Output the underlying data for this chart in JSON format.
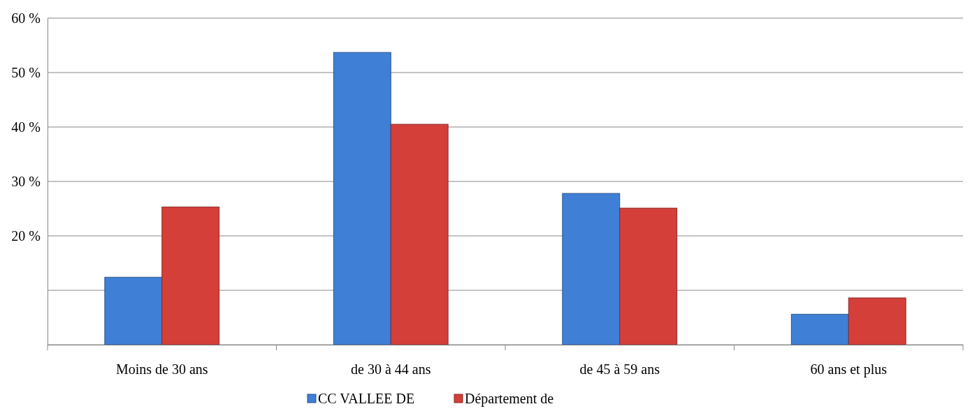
{
  "chart_data": {
    "type": "bar",
    "categories": [
      "Moins de 30 ans",
      "de 30 à 44 ans",
      "de 45 à 59 ans",
      "60 ans et plus"
    ],
    "series": [
      {
        "name": "CC VALLEE DE",
        "color": "#3f7fd6",
        "values": [
          12.4,
          53.7,
          27.8,
          5.6
        ]
      },
      {
        "name": "Département de",
        "color": "#d43f3a",
        "values": [
          25.3,
          40.5,
          25.1,
          8.6
        ]
      }
    ],
    "ylim": [
      0,
      60
    ],
    "yticks": [
      {
        "value": 0,
        "label": null
      },
      {
        "value": 10,
        "label": null
      },
      {
        "value": 20,
        "label": "20 %"
      },
      {
        "value": 30,
        "label": "30 %"
      },
      {
        "value": 40,
        "label": "40 %"
      },
      {
        "value": 50,
        "label": "50 %"
      },
      {
        "value": 60,
        "label": "60 %"
      }
    ],
    "grid": "y",
    "legend": "bottom"
  }
}
